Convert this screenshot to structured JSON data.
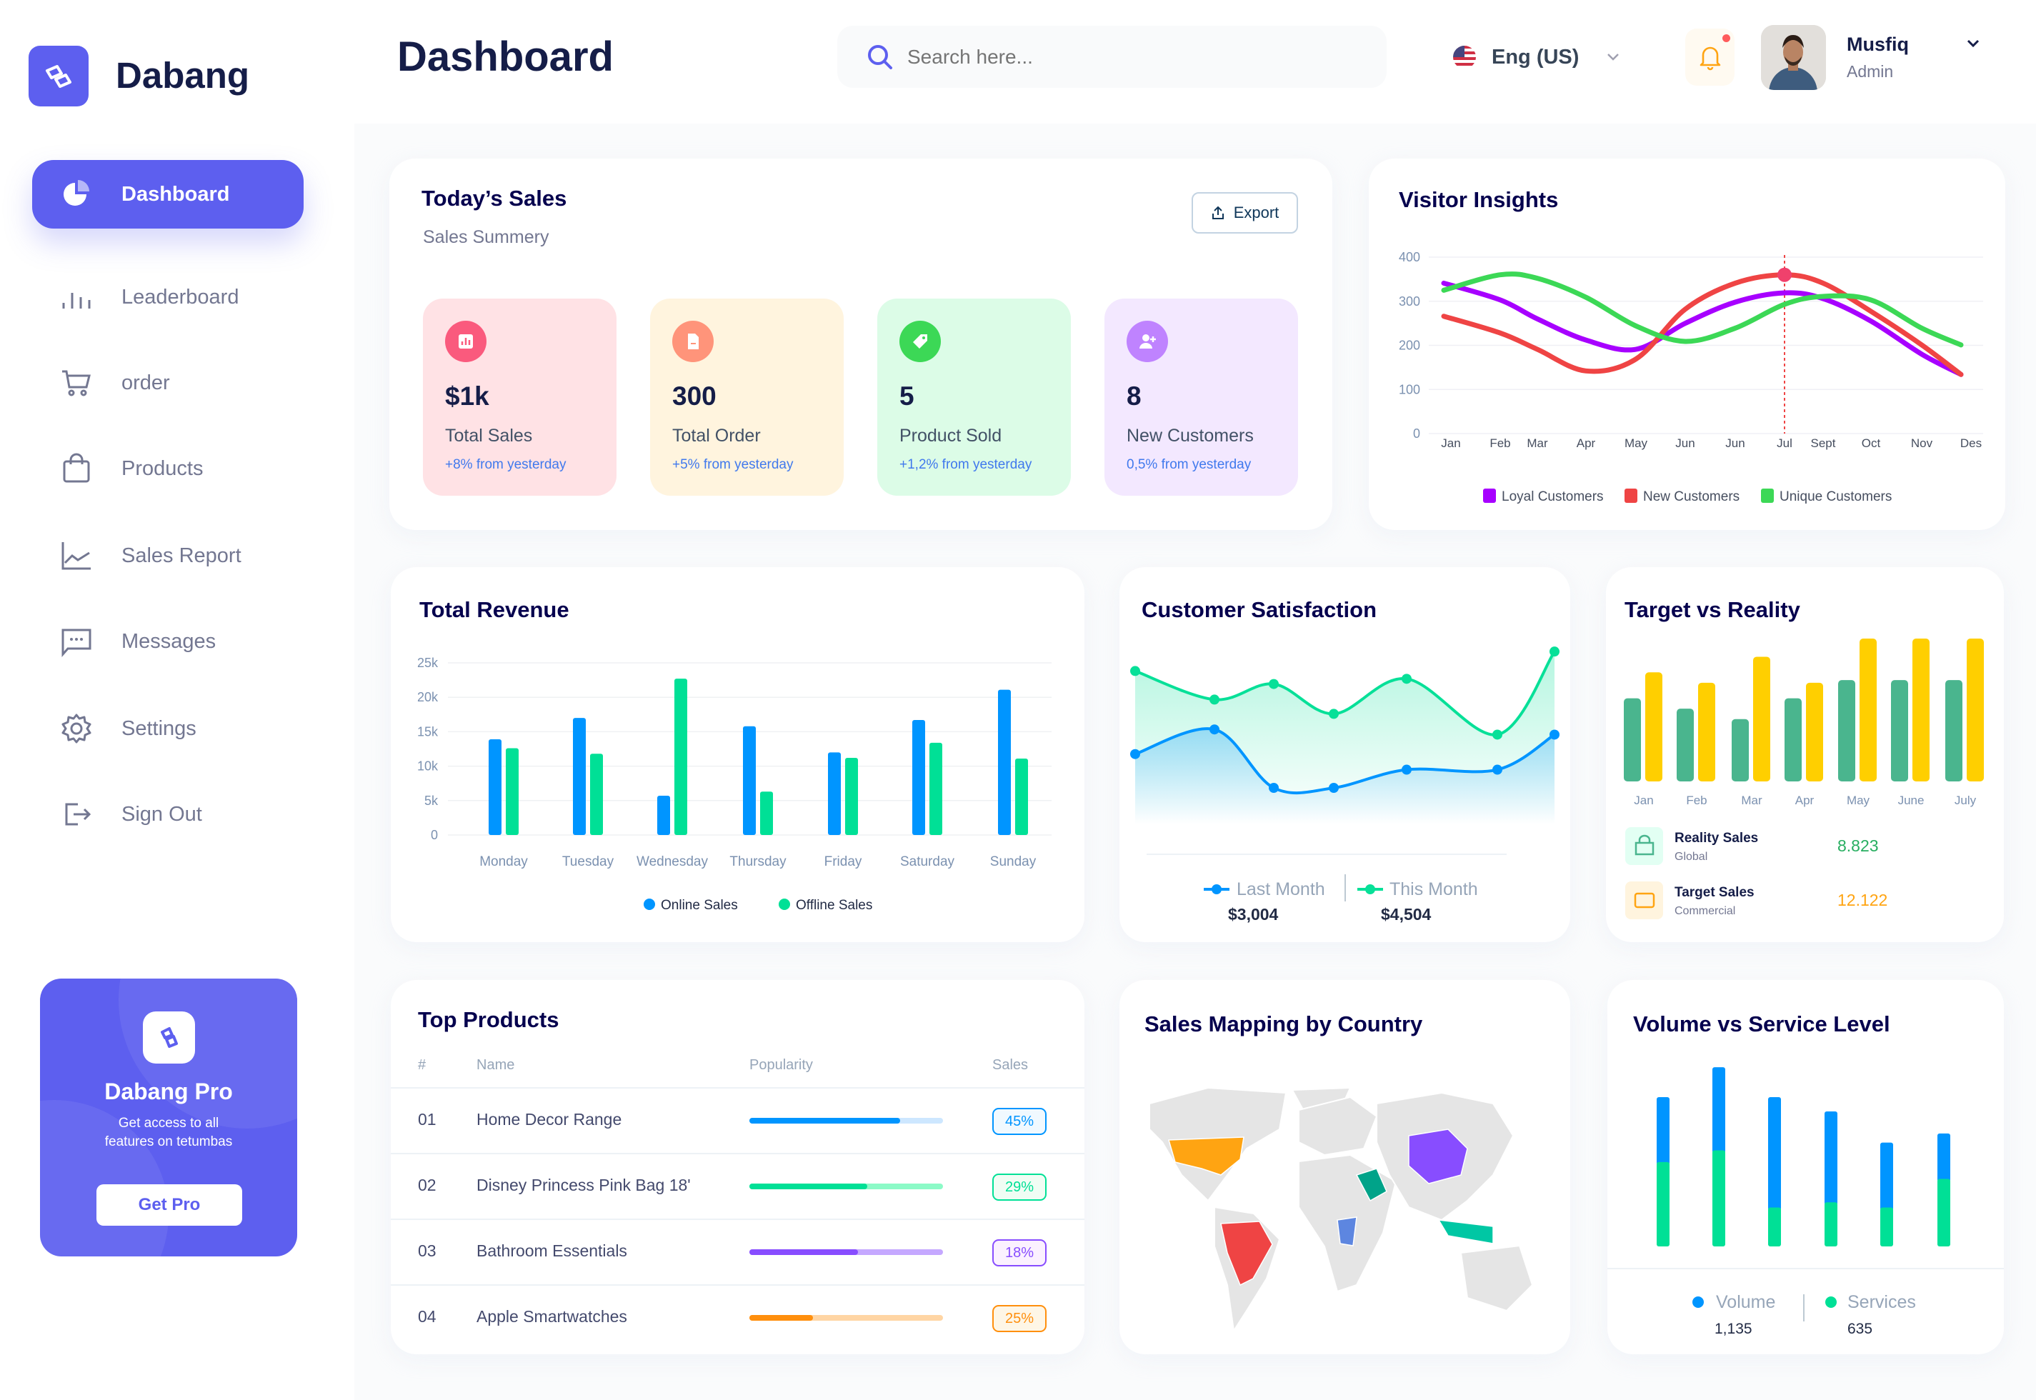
{
  "brand": {
    "name": "Dabang",
    "accent": "#5d5fef"
  },
  "sidebar": {
    "items": [
      {
        "label": "Dashboard",
        "icon": "pie-chart-icon",
        "active": true
      },
      {
        "label": "Leaderboard",
        "icon": "bar-chart-icon"
      },
      {
        "label": "order",
        "icon": "cart-icon"
      },
      {
        "label": "Products",
        "icon": "shopping-bag-icon"
      },
      {
        "label": "Sales Report",
        "icon": "line-chart-icon"
      },
      {
        "label": "Messages",
        "icon": "message-icon"
      },
      {
        "label": "Settings",
        "icon": "gear-icon"
      },
      {
        "label": "Sign Out",
        "icon": "sign-out-icon"
      }
    ],
    "promo": {
      "title": "Dabang Pro",
      "line1": "Get access to all",
      "line2": "features on tetumbas",
      "button": "Get Pro"
    }
  },
  "header": {
    "title": "Dashboard",
    "search_placeholder": "Search here...",
    "language": "Eng (US)",
    "user": {
      "name": "Musfiq",
      "role": "Admin"
    },
    "notification_dot": true
  },
  "todays_sales": {
    "title": "Today’s Sales",
    "subtitle": "Sales Summery",
    "export": "Export",
    "stats": [
      {
        "value": "$1k",
        "label": "Total Sales",
        "change": "+8% from yesterday",
        "bg": "#ffe2e5",
        "icon_bg": "#fa5a7d",
        "icon": "chart-icon"
      },
      {
        "value": "300",
        "label": "Total Order",
        "change": "+5% from yesterday",
        "bg": "#fff4de",
        "icon_bg": "#ff947a",
        "icon": "document-icon"
      },
      {
        "value": "5",
        "label": "Product Sold",
        "change": "+1,2% from yesterday",
        "bg": "#dcfce7",
        "icon_bg": "#3cd856",
        "icon": "tag-icon"
      },
      {
        "value": "8",
        "label": "New Customers",
        "change": "0,5% from yesterday",
        "bg": "#f3e8ff",
        "icon_bg": "#bf83ff",
        "icon": "user-add-icon"
      }
    ]
  },
  "chart_data": [
    {
      "id": "visitor_insights",
      "type": "line",
      "title": "Visitor Insights",
      "categories": [
        "Jan",
        "Feb",
        "Mar",
        "Apr",
        "May",
        "Jun",
        "Jun",
        "Jul",
        "Sept",
        "Oct",
        "Nov",
        "Des"
      ],
      "ylim": [
        0,
        400
      ],
      "yticks": [
        "0",
        "100",
        "200",
        "300",
        "400"
      ],
      "grid": true,
      "legend": "bottom",
      "highlight": {
        "series": "New Customers",
        "category_index": 7
      },
      "series": [
        {
          "name": "Loyal Customers",
          "color": "#a700ff",
          "values": [
            341,
            303,
            260,
            212,
            191,
            250,
            298,
            319,
            306,
            255,
            180,
            134
          ]
        },
        {
          "name": "New Customers",
          "color": "#ef4444",
          "values": [
            266,
            228,
            191,
            142,
            169,
            282,
            341,
            360,
            341,
            277,
            201,
            134
          ]
        },
        {
          "name": "Unique Customers",
          "color": "#3cd856",
          "values": [
            325,
            360,
            352,
            309,
            244,
            209,
            239,
            293,
            311,
            303,
            239,
            201
          ]
        }
      ]
    },
    {
      "id": "total_revenue",
      "type": "bar",
      "title": "Total Revenue",
      "categories": [
        "Monday",
        "Tuesday",
        "Wednesday",
        "Thursday",
        "Friday",
        "Saturday",
        "Sunday"
      ],
      "ylim": [
        0,
        25000
      ],
      "yticks": [
        "0",
        "5k",
        "10k",
        "15k",
        "20k",
        "25k"
      ],
      "grid": true,
      "legend": "bottom",
      "series": [
        {
          "name": "Online Sales",
          "color": "#0095ff",
          "values": [
            13900,
            17000,
            5700,
            15800,
            12000,
            16700,
            21100
          ]
        },
        {
          "name": "Offline Sales",
          "color": "#00e096",
          "values": [
            12600,
            11800,
            22700,
            6300,
            11200,
            13400,
            11100
          ]
        }
      ]
    },
    {
      "id": "customer_satisfaction",
      "type": "area",
      "title": "Customer Satisfaction",
      "legend": "bottom",
      "series": [
        {
          "name": "Last Month",
          "color": "#0095ff",
          "total": "$3,004",
          "values": [
            59,
            78,
            33,
            33,
            47,
            47,
            74
          ]
        },
        {
          "name": "This Month",
          "color": "#07e098",
          "total": "$4,504",
          "values": [
            123,
            101,
            113,
            90,
            117,
            74,
            138
          ]
        }
      ]
    },
    {
      "id": "target_vs_reality",
      "type": "bar",
      "title": "Target vs Reality",
      "categories": [
        "Jan",
        "Feb",
        "Mar",
        "Apr",
        "May",
        "June",
        "July"
      ],
      "series": [
        {
          "name": "Reality Sales",
          "sub": "Global",
          "total": "8.823",
          "color": "#4ab58e",
          "values": [
            64,
            56,
            48,
            64,
            78,
            78,
            78
          ]
        },
        {
          "name": "Target Sales",
          "sub": "Commercial",
          "total": "12.122",
          "color": "#ffcf00",
          "values": [
            84,
            76,
            96,
            76,
            110,
            110,
            110
          ]
        }
      ]
    },
    {
      "id": "volume_vs_service",
      "type": "bar",
      "stacked": true,
      "title": "Volume vs Service Level",
      "legend": "bottom",
      "series": [
        {
          "name": "Volume",
          "color": "#0095ff",
          "total": "1,135",
          "values": [
            50,
            64,
            85,
            70,
            50,
            35
          ]
        },
        {
          "name": "Services",
          "color": "#00e096",
          "total": "635",
          "values": [
            65,
            74,
            30,
            34,
            30,
            52
          ]
        }
      ]
    }
  ],
  "top_products": {
    "title": "Top Products",
    "columns": [
      "#",
      "Name",
      "Popularity",
      "Sales"
    ],
    "rows": [
      {
        "num": "01",
        "name": "Home Decor Range",
        "popularity": 0.78,
        "sales": "45%",
        "color": "#0095ff",
        "track": "#cde7ff",
        "badge_bg": "#f0f9ff"
      },
      {
        "num": "02",
        "name": "Disney Princess Pink Bag 18'",
        "popularity": 0.61,
        "sales": "29%",
        "color": "#00e096",
        "track": "#8cfac7",
        "badge_bg": "#f0fdf4"
      },
      {
        "num": "03",
        "name": "Bathroom Essentials",
        "popularity": 0.56,
        "sales": "18%",
        "color": "#884dff",
        "track": "#c5a8ff",
        "badge_bg": "#fbf1ff"
      },
      {
        "num": "04",
        "name": "Apple Smartwatches",
        "popularity": 0.33,
        "sales": "25%",
        "color": "#ff8f0d",
        "track": "#ffd5a4",
        "badge_bg": "#fef6e6"
      }
    ]
  },
  "sales_mapping": {
    "title": "Sales Mapping by Country",
    "highlighted": [
      {
        "region": "USA",
        "color": "#ffa412"
      },
      {
        "region": "Brazil",
        "color": "#ef4444"
      },
      {
        "region": "China",
        "color": "#884dff"
      },
      {
        "region": "Saudi Arabia",
        "color": "#00a389"
      },
      {
        "region": "Congo",
        "color": "#5d86e0"
      },
      {
        "region": "Indonesia",
        "color": "#00c7a4"
      }
    ],
    "land_color": "#e5e5e5"
  }
}
